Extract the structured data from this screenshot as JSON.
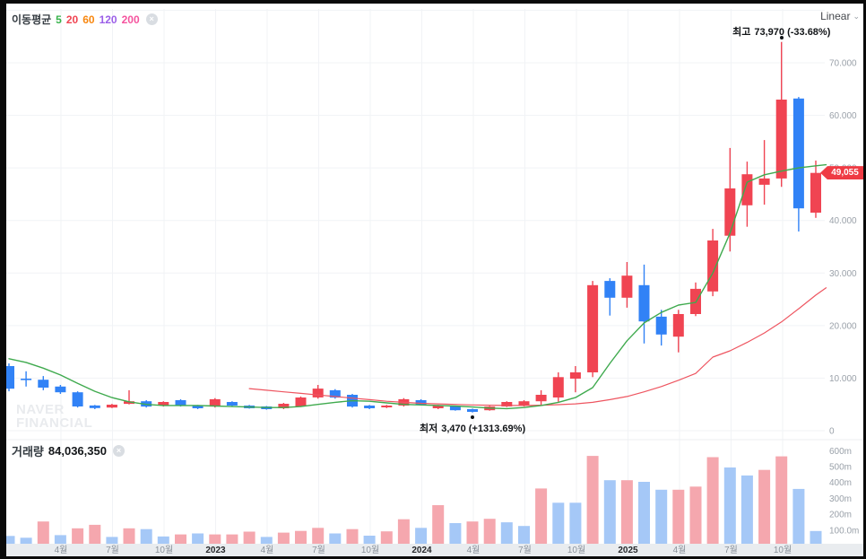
{
  "legend": {
    "label": "이동평균",
    "items": [
      {
        "text": "5",
        "color": "#36b24a"
      },
      {
        "text": "20",
        "color": "#f04452"
      },
      {
        "text": "60",
        "color": "#f8870f"
      },
      {
        "text": "120",
        "color": "#9b5fe8"
      },
      {
        "text": "200",
        "color": "#f5539e"
      }
    ],
    "close_label": "×"
  },
  "toolbar": {
    "scale_label": "Linear",
    "chevron": "⌄"
  },
  "volume_header": {
    "label": "거래량",
    "value": "84,036,350",
    "close_label": "×"
  },
  "watermark": {
    "line1": "NAVER",
    "line2": "FINANCIAL"
  },
  "annotations": {
    "high_label": "최고",
    "high_value": "73,970 (-33.68%)",
    "low_label": "최저",
    "low_value": "3,470 (+1313.69%)"
  },
  "price_badge": {
    "value": "49,055",
    "color": "#ef3b44"
  },
  "chart_data": {
    "type": "candlestick",
    "title": "Stock price with moving averages and volume",
    "price_axis": {
      "labels": [
        "70.000",
        "60.000",
        "50.000",
        "40.000",
        "30.000",
        "20.000",
        "10.000",
        "0"
      ],
      "values": [
        70000,
        60000,
        50000,
        40000,
        30000,
        20000,
        10000,
        0
      ]
    },
    "volume_axis": {
      "labels": [
        "600m",
        "500m",
        "400m",
        "300m",
        "200m",
        "100.0m"
      ],
      "values": [
        600,
        500,
        400,
        300,
        200,
        100
      ]
    },
    "x_axis": {
      "ticks": [
        {
          "label": "4월",
          "year": false
        },
        {
          "label": "7월",
          "year": false
        },
        {
          "label": "10월",
          "year": false
        },
        {
          "label": "2023",
          "year": true
        },
        {
          "label": "4월",
          "year": false
        },
        {
          "label": "7월",
          "year": false
        },
        {
          "label": "10월",
          "year": false
        },
        {
          "label": "2024",
          "year": true
        },
        {
          "label": "4월",
          "year": false
        },
        {
          "label": "7월",
          "year": false
        },
        {
          "label": "10월",
          "year": false
        },
        {
          "label": "2025",
          "year": true
        },
        {
          "label": "4월",
          "year": false
        },
        {
          "label": "7월",
          "year": false
        },
        {
          "label": "10월",
          "year": false
        }
      ]
    },
    "candles": [
      [
        12300,
        12800,
        7500,
        8000
      ],
      [
        9900,
        11300,
        8400,
        9700
      ],
      [
        9700,
        10400,
        7700,
        8200
      ],
      [
        8400,
        8700,
        7000,
        7300
      ],
      [
        7300,
        7500,
        4400,
        4600
      ],
      [
        4800,
        4900,
        4100,
        4300
      ],
      [
        4400,
        5100,
        4300,
        4950
      ],
      [
        5100,
        7700,
        5000,
        5600
      ],
      [
        5600,
        5800,
        4400,
        4600
      ],
      [
        4800,
        5600,
        4600,
        5460
      ],
      [
        5800,
        6000,
        4600,
        4780
      ],
      [
        4780,
        4900,
        4100,
        4270
      ],
      [
        4600,
        6200,
        4400,
        6000
      ],
      [
        5460,
        5600,
        4600,
        4780
      ],
      [
        4780,
        4900,
        4200,
        4270
      ],
      [
        4610,
        4700,
        4000,
        4100
      ],
      [
        4270,
        5300,
        4100,
        5120
      ],
      [
        4610,
        6500,
        4500,
        6320
      ],
      [
        6320,
        8700,
        6100,
        8000
      ],
      [
        7700,
        7900,
        6100,
        6300
      ],
      [
        6830,
        7000,
        4400,
        4600
      ],
      [
        4780,
        4900,
        4100,
        4270
      ],
      [
        4440,
        4900,
        4300,
        4780
      ],
      [
        4780,
        6200,
        4600,
        6000
      ],
      [
        5800,
        6000,
        4800,
        4950
      ],
      [
        4270,
        4900,
        4100,
        4780
      ],
      [
        4610,
        4700,
        3800,
        3900
      ],
      [
        4100,
        4200,
        3470,
        3580
      ],
      [
        3900,
        4700,
        3800,
        4600
      ],
      [
        4610,
        5600,
        4500,
        5460
      ],
      [
        4780,
        5800,
        4600,
        5600
      ],
      [
        5600,
        7700,
        4800,
        6830
      ],
      [
        6320,
        11100,
        5500,
        10200
      ],
      [
        9900,
        12300,
        7300,
        11100
      ],
      [
        11100,
        28500,
        10200,
        27700
      ],
      [
        28500,
        29000,
        21900,
        25300
      ],
      [
        25300,
        32100,
        23400,
        29500
      ],
      [
        27700,
        31600,
        16600,
        20800
      ],
      [
        21700,
        23000,
        16200,
        18300
      ],
      [
        17900,
        23000,
        14900,
        22200
      ],
      [
        22200,
        28200,
        21800,
        27000
      ],
      [
        26500,
        38400,
        25600,
        36200
      ],
      [
        37100,
        53800,
        34100,
        46100
      ],
      [
        42900,
        51200,
        38800,
        48800
      ],
      [
        46800,
        55300,
        43000,
        48000
      ],
      [
        48000,
        73970,
        46400,
        63000
      ],
      [
        63200,
        63500,
        37900,
        42300
      ],
      [
        41500,
        51400,
        40500,
        49055
      ]
    ],
    "volumes": [
      [
        49,
        "d"
      ],
      [
        38,
        "d"
      ],
      [
        140,
        "u"
      ],
      [
        54,
        "d"
      ],
      [
        97,
        "u"
      ],
      [
        119,
        "u"
      ],
      [
        43,
        "d"
      ],
      [
        97,
        "u"
      ],
      [
        92,
        "d"
      ],
      [
        46,
        "d"
      ],
      [
        59,
        "u"
      ],
      [
        65,
        "d"
      ],
      [
        59,
        "u"
      ],
      [
        59,
        "u"
      ],
      [
        76,
        "u"
      ],
      [
        43,
        "d"
      ],
      [
        70,
        "u"
      ],
      [
        81,
        "u"
      ],
      [
        100,
        "u"
      ],
      [
        65,
        "d"
      ],
      [
        92,
        "u"
      ],
      [
        51,
        "d"
      ],
      [
        78,
        "u"
      ],
      [
        154,
        "u"
      ],
      [
        100,
        "d"
      ],
      [
        243,
        "u"
      ],
      [
        130,
        "d"
      ],
      [
        140,
        "u"
      ],
      [
        157,
        "u"
      ],
      [
        135,
        "d"
      ],
      [
        112,
        "d"
      ],
      [
        348,
        "u"
      ],
      [
        258,
        "d"
      ],
      [
        258,
        "d"
      ],
      [
        553,
        "u"
      ],
      [
        400,
        "d"
      ],
      [
        400,
        "u"
      ],
      [
        390,
        "d"
      ],
      [
        340,
        "d"
      ],
      [
        340,
        "u"
      ],
      [
        360,
        "u"
      ],
      [
        545,
        "u"
      ],
      [
        480,
        "d"
      ],
      [
        430,
        "d"
      ],
      [
        465,
        "u"
      ],
      [
        550,
        "u"
      ],
      [
        345,
        "d"
      ],
      [
        80,
        "d"
      ]
    ],
    "ma_green": [
      [
        0,
        13700
      ],
      [
        1,
        13000
      ],
      [
        2,
        11900
      ],
      [
        3,
        10600
      ],
      [
        4,
        9000
      ],
      [
        5,
        7500
      ],
      [
        6,
        6300
      ],
      [
        7,
        5500
      ],
      [
        8,
        5000
      ],
      [
        9,
        4800
      ],
      [
        10,
        4800
      ],
      [
        11,
        4800
      ],
      [
        12,
        4700
      ],
      [
        13,
        4600
      ],
      [
        14,
        4500
      ],
      [
        15,
        4400
      ],
      [
        16,
        4400
      ],
      [
        17,
        4600
      ],
      [
        18,
        5000
      ],
      [
        19,
        5400
      ],
      [
        20,
        5700
      ],
      [
        21,
        5600
      ],
      [
        22,
        5300
      ],
      [
        23,
        5000
      ],
      [
        24,
        4900
      ],
      [
        25,
        4800
      ],
      [
        26,
        4700
      ],
      [
        27,
        4500
      ],
      [
        28,
        4300
      ],
      [
        29,
        4200
      ],
      [
        30,
        4400
      ],
      [
        31,
        4800
      ],
      [
        32,
        5400
      ],
      [
        33,
        6300
      ],
      [
        34,
        8200
      ],
      [
        35,
        12800
      ],
      [
        36,
        17100
      ],
      [
        37,
        20500
      ],
      [
        38,
        22500
      ],
      [
        39,
        23900
      ],
      [
        40,
        24400
      ],
      [
        41,
        30000
      ],
      [
        42,
        37600
      ],
      [
        43,
        47300
      ],
      [
        44,
        48700
      ],
      [
        45,
        49400
      ],
      [
        46,
        50000
      ],
      [
        47,
        50400
      ],
      [
        47.6,
        50600
      ]
    ],
    "ma_red": [
      [
        14,
        8000
      ],
      [
        15,
        7700
      ],
      [
        16,
        7400
      ],
      [
        17,
        7100
      ],
      [
        18,
        6800
      ],
      [
        19,
        6500
      ],
      [
        20,
        6200
      ],
      [
        21,
        5900
      ],
      [
        22,
        5600
      ],
      [
        23,
        5400
      ],
      [
        24,
        5200
      ],
      [
        25,
        5100
      ],
      [
        26,
        5000
      ],
      [
        27,
        4900
      ],
      [
        28,
        4850
      ],
      [
        29,
        4800
      ],
      [
        30,
        4800
      ],
      [
        31,
        4850
      ],
      [
        32,
        4950
      ],
      [
        33,
        5100
      ],
      [
        34,
        5400
      ],
      [
        35,
        5900
      ],
      [
        36,
        6500
      ],
      [
        37,
        7400
      ],
      [
        38,
        8400
      ],
      [
        39,
        9600
      ],
      [
        40,
        10900
      ],
      [
        41,
        14000
      ],
      [
        42,
        15200
      ],
      [
        43,
        16800
      ],
      [
        44,
        18600
      ],
      [
        45,
        20700
      ],
      [
        46,
        23200
      ],
      [
        47,
        25800
      ],
      [
        47.6,
        27200
      ]
    ],
    "colors": {
      "up": "#f04452",
      "down": "#3182f6",
      "vol_up": "#f5a7ae",
      "vol_down": "#a5c8f7",
      "ma_green": "#3faa4e",
      "ma_red": "#ee5560",
      "grid": "#f1f3f6",
      "axis_text": "#9aa1a9",
      "strip_bg": "#e9ecef",
      "strip_text": "#8a929b",
      "strip_year": "#26282b"
    },
    "high_point": {
      "index": 45,
      "price": 73970
    },
    "low_point": {
      "index": 27,
      "price": 3470
    },
    "current_price": 49055,
    "y_range": [
      0,
      81000
    ],
    "volume_range_m": [
      0,
      650
    ]
  }
}
